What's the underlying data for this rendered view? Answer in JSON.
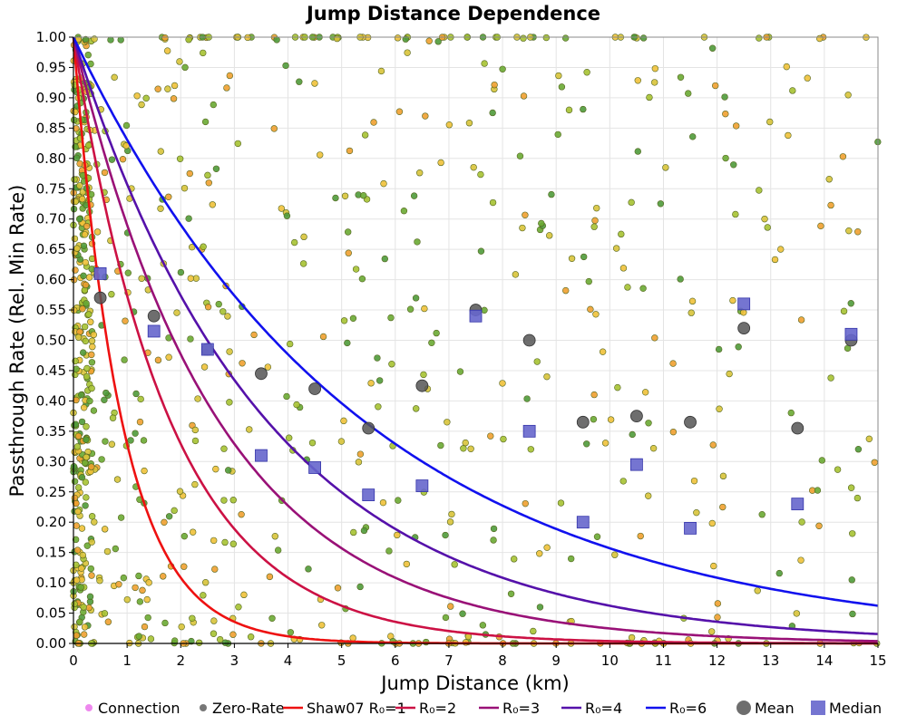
{
  "chart_data": {
    "type": "scatter",
    "title": "Jump Distance Dependence",
    "xlabel": "Jump Distance (km)",
    "ylabel": "Passthrough Rate (Rel. Min Rate)",
    "xlim": [
      0,
      15
    ],
    "ylim": [
      0,
      1
    ],
    "x_ticks": [
      "0",
      "1",
      "2",
      "3",
      "4",
      "5",
      "6",
      "7",
      "8",
      "9",
      "10",
      "11",
      "12",
      "13",
      "14",
      "15"
    ],
    "y_ticks": [
      "0.00",
      "0.05",
      "0.10",
      "0.15",
      "0.20",
      "0.25",
      "0.30",
      "0.35",
      "0.40",
      "0.45",
      "0.50",
      "0.55",
      "0.60",
      "0.65",
      "0.70",
      "0.75",
      "0.80",
      "0.85",
      "0.90",
      "0.95",
      "1.00"
    ],
    "grid": true,
    "legend_position": "bottom",
    "colors": {
      "connection": "#ee88ee",
      "zero_rate": "#777777",
      "shaw07": "#ee1111",
      "r2": "#cc1144",
      "r3": "#aa1166",
      "r4": "#771199",
      "r6": "#4411bb",
      "r8": "#1111ee",
      "mean": "#555555",
      "median": "#6666cc",
      "scatter_colors": [
        "#6aaa33",
        "#a6c232",
        "#d8c33a",
        "#efc13a",
        "#4f9a3a",
        "#f0a030"
      ]
    },
    "series": [
      {
        "name": "Connection",
        "kind": "scatter-legend-only",
        "color": "#ee88ee"
      },
      {
        "name": "Zero-Rate",
        "kind": "scatter-legend-only",
        "color": "#777777"
      },
      {
        "name": "Shaw07 R₀=1",
        "kind": "curve",
        "r0": 1,
        "color": "#ee1111"
      },
      {
        "name": "R₀=2",
        "kind": "curve",
        "r0": 2,
        "color": "#cc1144"
      },
      {
        "name": "R₀=3",
        "kind": "curve",
        "r0": 3,
        "color": "#991177"
      },
      {
        "name": "R₀=4",
        "kind": "curve",
        "r0": 4,
        "color": "#5511aa"
      },
      {
        "name": "R₀=6",
        "kind": "curve",
        "r0": 6,
        "color": "#1111ee"
      },
      {
        "name": "Mean",
        "kind": "points",
        "marker": "circle",
        "color": "#555555",
        "x": [
          0.5,
          1.5,
          2.5,
          3.5,
          4.5,
          5.5,
          6.5,
          7.5,
          8.5,
          9.5,
          10.5,
          11.5,
          12.5,
          13.5,
          14.5
        ],
        "y": [
          0.57,
          0.54,
          0.485,
          0.445,
          0.42,
          0.355,
          0.425,
          0.55,
          0.5,
          0.365,
          0.375,
          0.365,
          0.52,
          0.355,
          0.5
        ]
      },
      {
        "name": "Median",
        "kind": "points",
        "marker": "square",
        "color": "#6666cc",
        "x": [
          0.5,
          1.5,
          2.5,
          3.5,
          4.5,
          5.5,
          6.5,
          7.5,
          8.5,
          9.5,
          10.5,
          11.5,
          12.5,
          13.5,
          14.5
        ],
        "y": [
          0.61,
          0.515,
          0.485,
          0.31,
          0.29,
          0.245,
          0.26,
          0.54,
          0.35,
          0.2,
          0.295,
          0.19,
          0.56,
          0.23,
          0.51
        ]
      }
    ],
    "scatter_seed": 7,
    "scatter_count": 900
  },
  "legend": {
    "items": [
      {
        "label": "Connection"
      },
      {
        "label": "Zero-Rate"
      },
      {
        "label": "Shaw07 R₀=1"
      },
      {
        "label": "R₀=2"
      },
      {
        "label": "R₀=3"
      },
      {
        "label": "R₀=4"
      },
      {
        "label": "R₀=6"
      },
      {
        "label": "Mean"
      },
      {
        "label": "Median"
      }
    ]
  }
}
